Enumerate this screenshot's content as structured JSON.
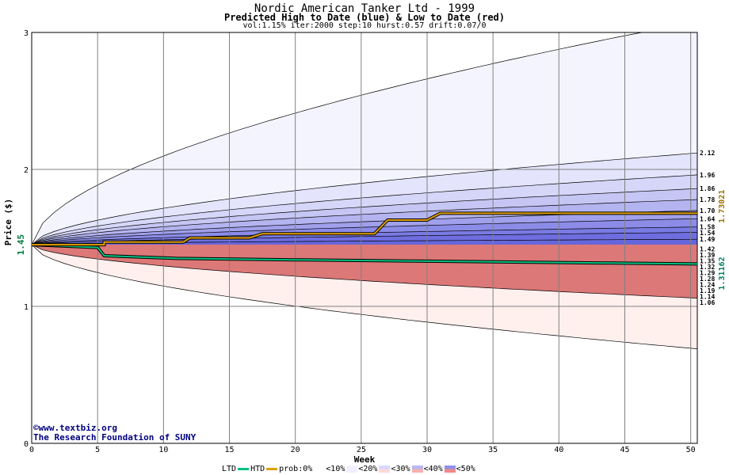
{
  "header": {
    "title": "Nordic American Tanker Ltd - 1999",
    "subtitle": "Predicted High to Date (blue) &  Low to Date (red)",
    "params": "vol:1.15% iter:2000 step:10 hurst:0.57 drift:0.07/0"
  },
  "credits": {
    "site": "www.textbiz.org",
    "org": "The Research Foundation of SUNY"
  },
  "legend": {
    "ltd": "LTD",
    "htd": "HTD",
    "prob": "prob:0%",
    "b10": "<10%",
    "b20": "<20%",
    "b30": "<30%",
    "b40": "<40%",
    "b50": "<50%",
    "ltd_color": "#00c080",
    "htd_color": "#e0a000"
  },
  "chart_data": {
    "type": "area",
    "xlabel": "Week",
    "ylabel": "Price ($)",
    "xlim": [
      0,
      50.5
    ],
    "ylim": [
      0,
      3
    ],
    "x_ticks": [
      0,
      5,
      10,
      15,
      20,
      25,
      30,
      35,
      40,
      45,
      50
    ],
    "y_ticks": [
      0,
      1,
      2,
      3
    ],
    "start_price": "1.45",
    "htd_final": "1.73021",
    "ltd_final": "1.31162",
    "high_band_labels": [
      "2.12",
      "1.96",
      "1.86",
      "1.78",
      "1.70",
      "1.64",
      "1.58",
      "1.54",
      "1.49"
    ],
    "low_band_labels": [
      "1.42",
      "1.39",
      "1.35",
      "1.32",
      "1.29",
      "1.28",
      "1.24",
      "1.19",
      "1.14",
      "1.06"
    ],
    "high_band_values": [
      2.12,
      1.96,
      1.86,
      1.78,
      1.7,
      1.64,
      1.58,
      1.54,
      1.49
    ],
    "low_band_values": [
      1.42,
      1.39,
      1.35,
      1.32,
      1.29,
      1.28,
      1.24,
      1.19,
      1.14,
      1.06
    ],
    "outer_high_end": 3.08,
    "outer_low_end": 0.69,
    "htd_path": [
      [
        0,
        1.45
      ],
      [
        5.5,
        1.45
      ],
      [
        5.5,
        1.47
      ],
      [
        11.5,
        1.47
      ],
      [
        12,
        1.5
      ],
      [
        16.5,
        1.5
      ],
      [
        17.5,
        1.53
      ],
      [
        26,
        1.53
      ],
      [
        26.5,
        1.58
      ],
      [
        27,
        1.63
      ],
      [
        30,
        1.63
      ],
      [
        31,
        1.68
      ],
      [
        50.5,
        1.68
      ]
    ],
    "ltd_path": [
      [
        0,
        1.45
      ],
      [
        5,
        1.43
      ],
      [
        5.5,
        1.37
      ],
      [
        11,
        1.35
      ],
      [
        20,
        1.34
      ],
      [
        30,
        1.33
      ],
      [
        40,
        1.32
      ],
      [
        50.5,
        1.31
      ]
    ]
  }
}
